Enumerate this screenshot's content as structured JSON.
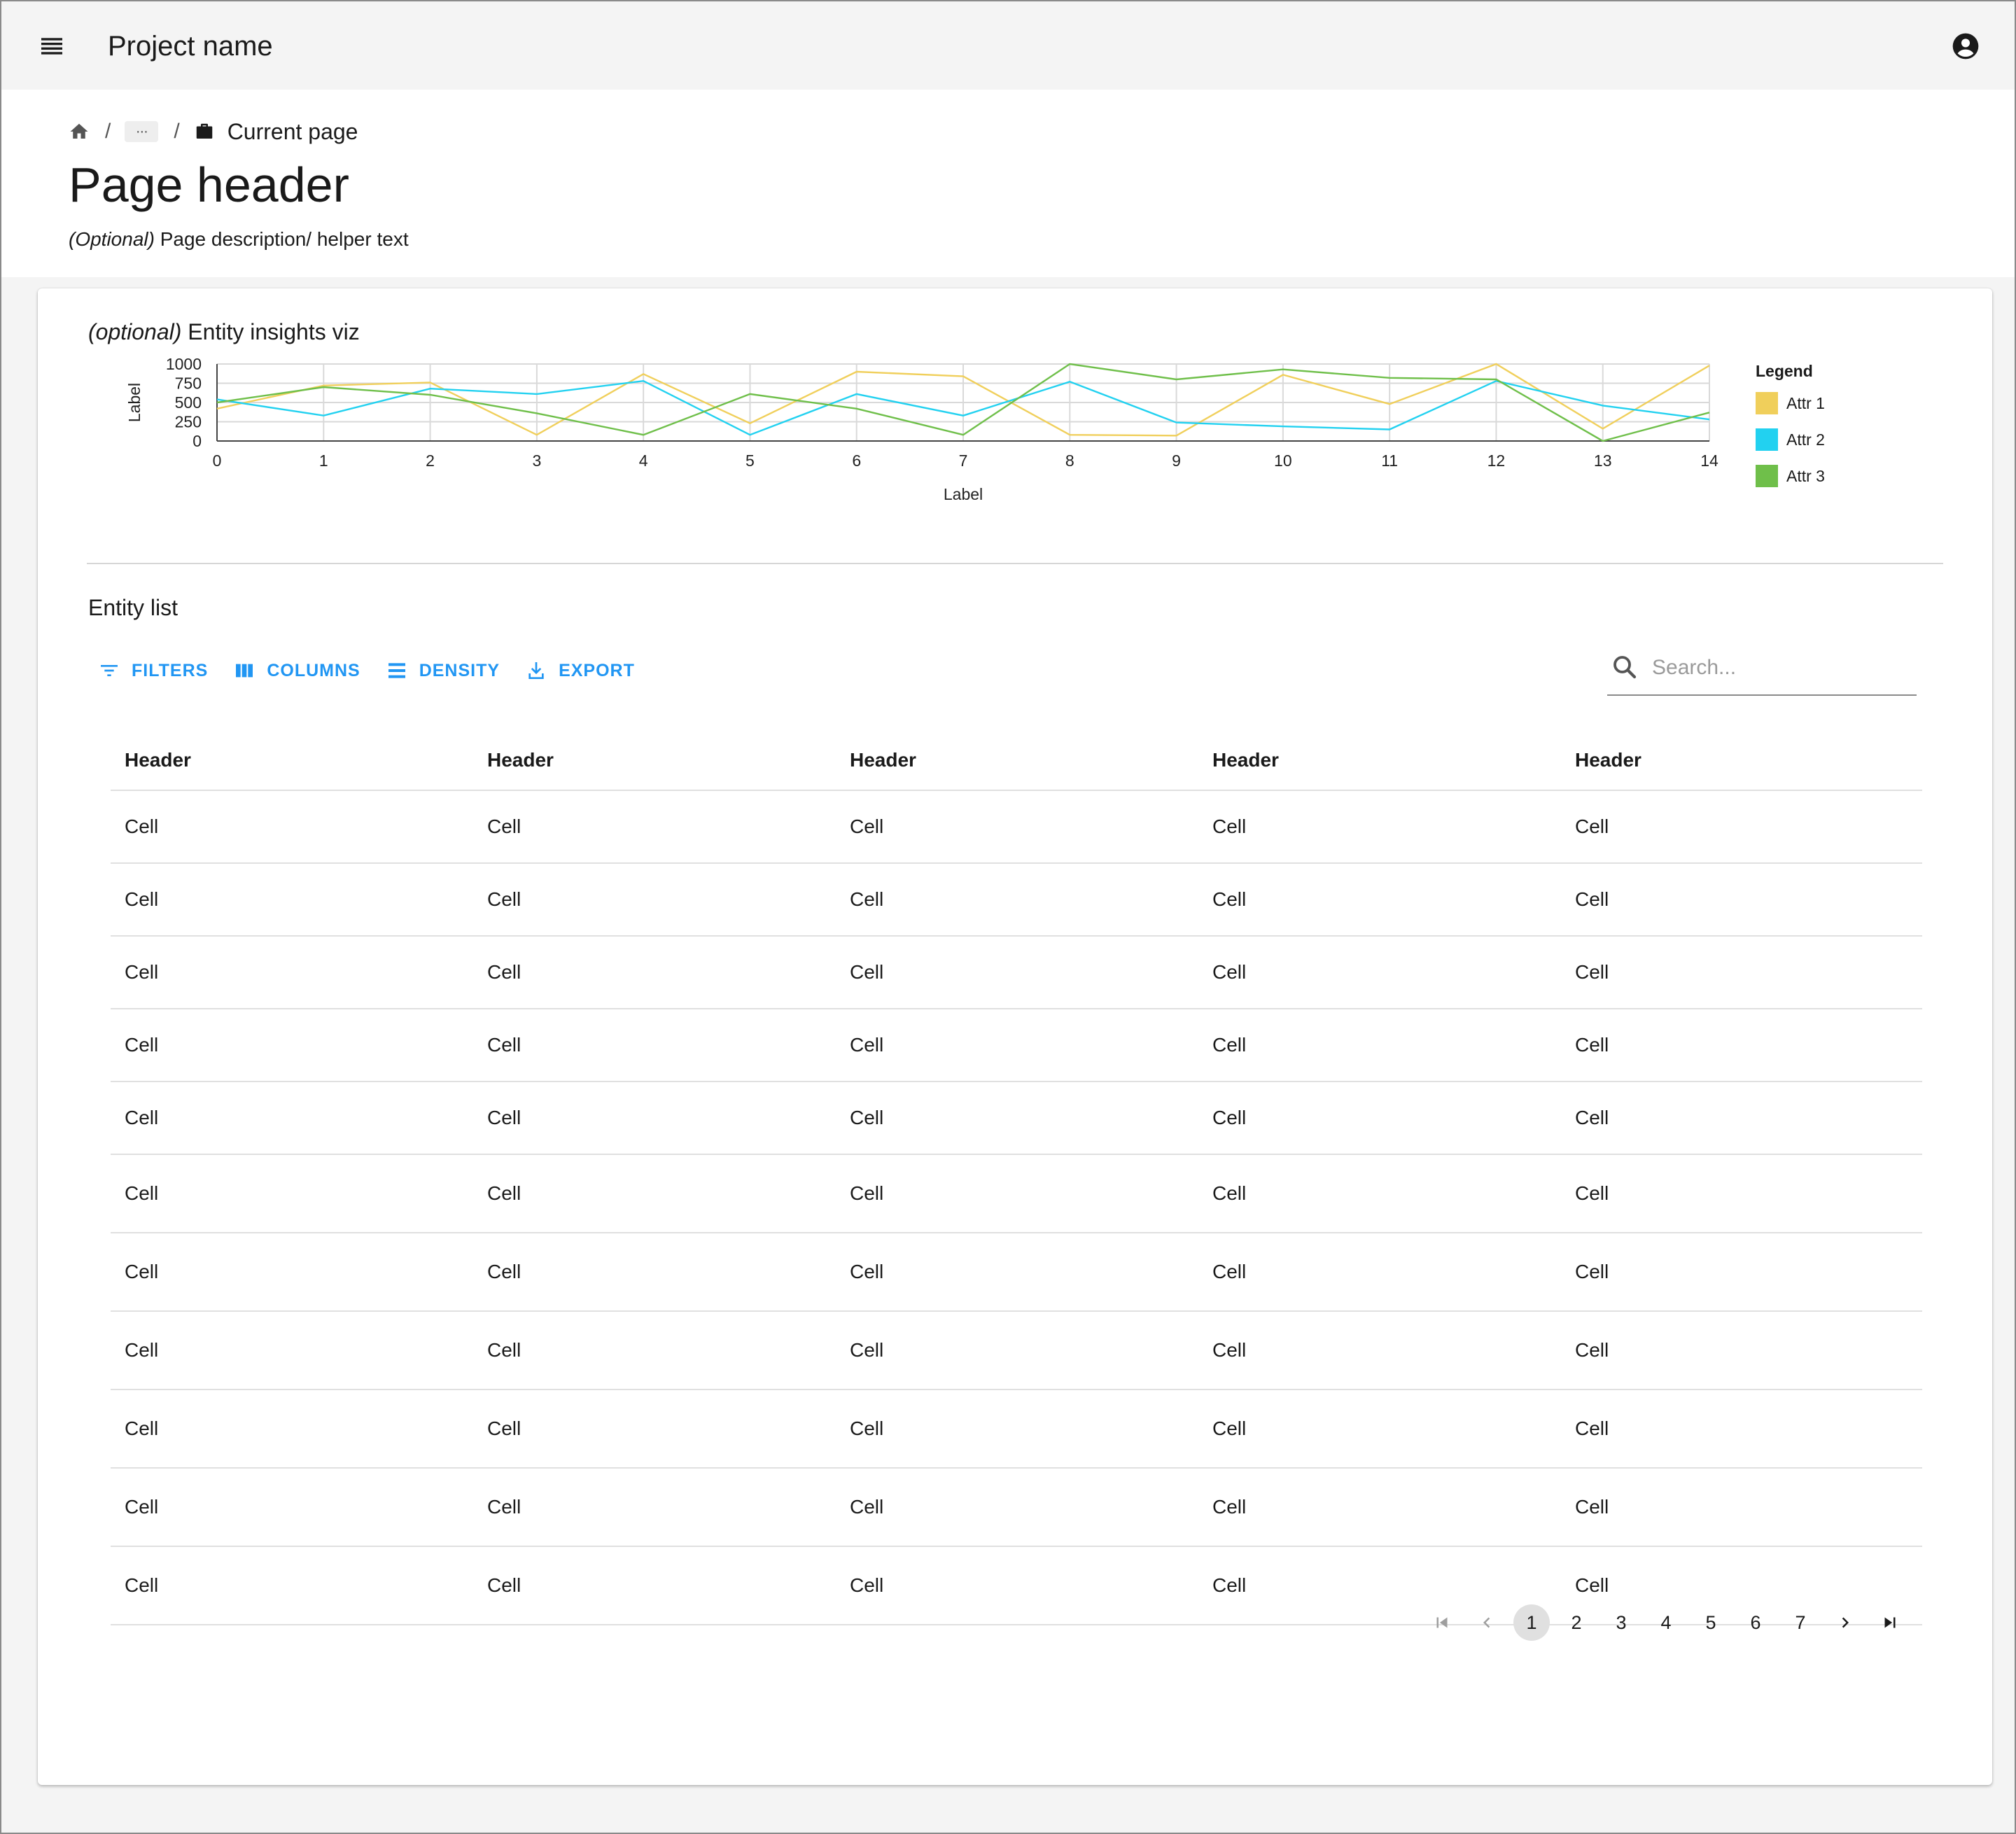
{
  "appbar": {
    "project_name": "Project name",
    "menu_icon": "menu-icon",
    "account_icon": "account-circle-icon"
  },
  "breadcrumb": {
    "home_icon": "home-icon",
    "separator": "/",
    "ellipsis": "···",
    "current_icon": "briefcase-icon",
    "current": "Current page"
  },
  "page": {
    "title": "Page header",
    "desc_optional": "(Optional)",
    "desc_text": " Page description/ helper text"
  },
  "viz": {
    "optional": "(optional)",
    "title": " Entity insights viz"
  },
  "chart_data": {
    "type": "line",
    "x": [
      0,
      1,
      2,
      3,
      4,
      5,
      6,
      7,
      8,
      9,
      10,
      11,
      12,
      13,
      14
    ],
    "xlabel": "Label",
    "ylabel": "Label",
    "ylim": [
      0,
      1000
    ],
    "yticks": [
      0,
      250,
      500,
      750,
      1000
    ],
    "grid": true,
    "legend_title": "Legend",
    "legend_position": "right",
    "series": [
      {
        "name": "Attr 1",
        "color": "#f0cf5b",
        "values": [
          420,
          720,
          760,
          80,
          870,
          230,
          900,
          840,
          80,
          70,
          860,
          480,
          1000,
          160,
          980
        ]
      },
      {
        "name": "Attr 2",
        "color": "#22d1f0",
        "values": [
          540,
          330,
          680,
          610,
          780,
          80,
          610,
          330,
          770,
          240,
          190,
          150,
          780,
          460,
          280
        ]
      },
      {
        "name": "Attr 3",
        "color": "#6fbf4a",
        "values": [
          500,
          700,
          600,
          360,
          80,
          610,
          420,
          80,
          1020,
          800,
          930,
          820,
          800,
          0,
          370
        ]
      }
    ]
  },
  "entity_list": {
    "title": "Entity list",
    "toolbar": {
      "filters": "FILTERS",
      "columns": "COLUMNS",
      "density": "DENSITY",
      "export": "EXPORT"
    },
    "search_placeholder": "Search...",
    "headers": [
      "Header",
      "Header",
      "Header",
      "Header",
      "Header"
    ],
    "rows": [
      [
        "Cell",
        "Cell",
        "Cell",
        "Cell",
        "Cell"
      ],
      [
        "Cell",
        "Cell",
        "Cell",
        "Cell",
        "Cell"
      ],
      [
        "Cell",
        "Cell",
        "Cell",
        "Cell",
        "Cell"
      ],
      [
        "Cell",
        "Cell",
        "Cell",
        "Cell",
        "Cell"
      ],
      [
        "Cell",
        "Cell",
        "Cell",
        "Cell",
        "Cell"
      ],
      [
        "Cell",
        "Cell",
        "Cell",
        "Cell",
        "Cell"
      ],
      [
        "Cell",
        "Cell",
        "Cell",
        "Cell",
        "Cell"
      ],
      [
        "Cell",
        "Cell",
        "Cell",
        "Cell",
        "Cell"
      ],
      [
        "Cell",
        "Cell",
        "Cell",
        "Cell",
        "Cell"
      ],
      [
        "Cell",
        "Cell",
        "Cell",
        "Cell",
        "Cell"
      ],
      [
        "Cell",
        "Cell",
        "Cell",
        "Cell",
        "Cell"
      ]
    ]
  },
  "pagination": {
    "pages": [
      "1",
      "2",
      "3",
      "4",
      "5",
      "6",
      "7"
    ],
    "current": "1"
  }
}
